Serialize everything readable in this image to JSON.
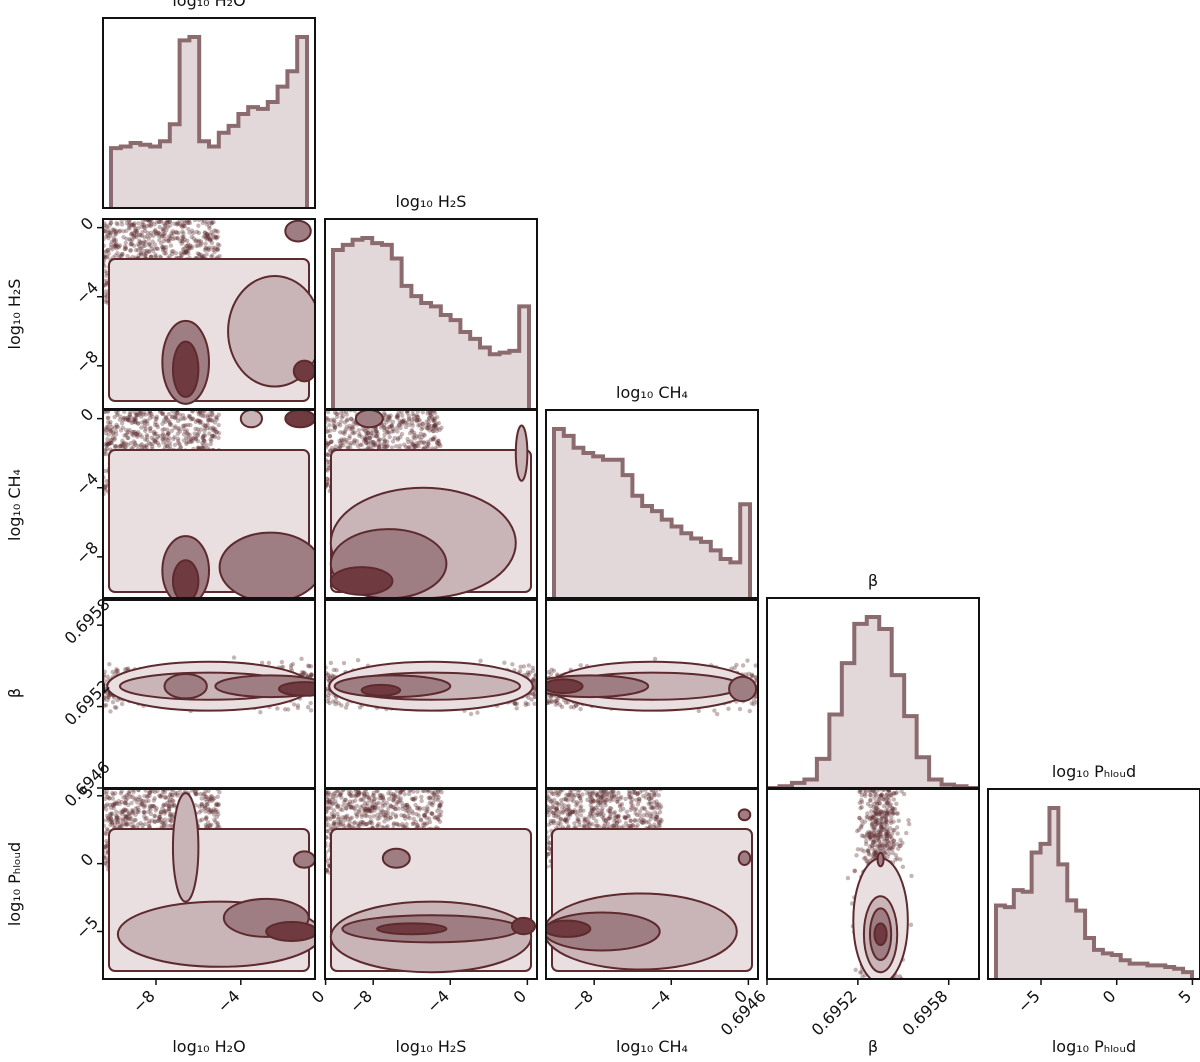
{
  "chart_data": {
    "type": "corner",
    "colors": {
      "main": "#5d2a2e",
      "hist_fill": "#e2d7d9",
      "hist_line": "#8c6b6f",
      "density_levels": [
        "#e9dfe1",
        "#c9b5b8",
        "#9e7e82",
        "#6f3b41"
      ]
    },
    "parameters": [
      {
        "key": "h2o",
        "label": "log₁₀ H₂O",
        "range": [
          -10.5,
          -0.5
        ],
        "ticks": [
          -8,
          -4,
          0
        ],
        "tick_labels": [
          "−8",
          "−4",
          "0"
        ]
      },
      {
        "key": "h2s",
        "label": "log₁₀ H₂S",
        "range": [
          -10.5,
          0.5
        ],
        "ticks": [
          -8,
          -4,
          0
        ],
        "tick_labels": [
          "−8",
          "−4",
          "0"
        ]
      },
      {
        "key": "ch4",
        "label": "log₁₀ CH₄",
        "range": [
          -10.5,
          0.5
        ],
        "ticks": [
          -8,
          -4,
          0
        ],
        "tick_labels": [
          "−8",
          "−4",
          "0"
        ]
      },
      {
        "key": "beta",
        "label": "β",
        "range": [
          0.6946,
          0.696
        ],
        "ticks": [
          0.6946,
          0.6952,
          0.6958
        ],
        "tick_labels": [
          "0.6946",
          "0.6952",
          "0.6958"
        ]
      },
      {
        "key": "pcloud",
        "label": "log₁₀ Pₕₗₒᵤd",
        "range": [
          -8.5,
          5.5
        ],
        "ticks": [
          -5,
          0,
          5
        ],
        "tick_labels": [
          "−5",
          "0",
          "5"
        ]
      }
    ],
    "histograms": {
      "h2o": [
        0.35,
        0.36,
        0.38,
        0.37,
        0.36,
        0.39,
        0.49,
        0.98,
        1.0,
        0.39,
        0.36,
        0.44,
        0.48,
        0.55,
        0.59,
        0.58,
        0.62,
        0.71,
        0.8,
        1.0
      ],
      "h2s": [
        0.93,
        0.96,
        0.99,
        1.0,
        0.97,
        0.96,
        0.88,
        0.72,
        0.66,
        0.62,
        0.6,
        0.55,
        0.52,
        0.45,
        0.41,
        0.36,
        0.32,
        0.33,
        0.34,
        0.6
      ],
      "ch4": [
        1.0,
        0.96,
        0.89,
        0.86,
        0.84,
        0.82,
        0.82,
        0.73,
        0.61,
        0.55,
        0.52,
        0.47,
        0.43,
        0.39,
        0.36,
        0.34,
        0.29,
        0.24,
        0.22,
        0.56
      ],
      "beta": [
        0.0,
        0.01,
        0.03,
        0.05,
        0.17,
        0.43,
        0.73,
        0.96,
        1.0,
        0.93,
        0.66,
        0.42,
        0.18,
        0.05,
        0.02,
        0.01,
        0.0
      ],
      "pcloud": [
        0.43,
        0.42,
        0.52,
        0.51,
        0.74,
        0.79,
        1.0,
        0.67,
        0.46,
        0.4,
        0.24,
        0.17,
        0.15,
        0.14,
        0.11,
        0.09,
        0.09,
        0.08,
        0.08,
        0.07,
        0.06,
        0.04
      ]
    },
    "grid": false,
    "legend": "none"
  }
}
